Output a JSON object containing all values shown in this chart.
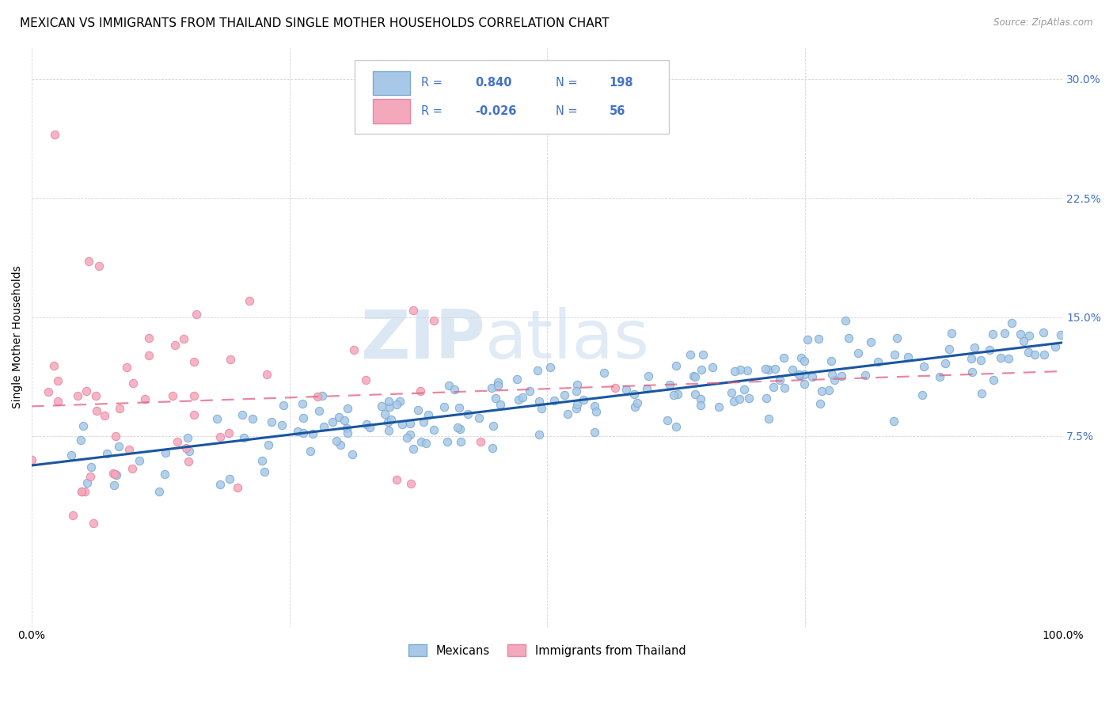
{
  "title": "MEXICAN VS IMMIGRANTS FROM THAILAND SINGLE MOTHER HOUSEHOLDS CORRELATION CHART",
  "source": "Source: ZipAtlas.com",
  "ylabel": "Single Mother Households",
  "watermark_zip": "ZIP",
  "watermark_atlas": "atlas",
  "blue_R": 0.84,
  "blue_N": 198,
  "pink_R": -0.026,
  "pink_N": 56,
  "blue_color": "#A8C8E8",
  "pink_color": "#F4A8BC",
  "blue_edge_color": "#7AAAD0",
  "pink_edge_color": "#E888A0",
  "blue_line_color": "#1A56A0",
  "pink_line_color": "#E06080",
  "xlim": [
    0,
    1.0
  ],
  "ylim": [
    -0.045,
    0.32
  ],
  "yticks": [
    0.075,
    0.15,
    0.225,
    0.3
  ],
  "ytick_labels": [
    "7.5%",
    "15.0%",
    "22.5%",
    "30.0%"
  ],
  "legend_labels": [
    "Mexicans",
    "Immigrants from Thailand"
  ],
  "title_fontsize": 11,
  "tick_fontsize": 10,
  "background_color": "#FFFFFF",
  "grid_color": "#CCCCCC",
  "tick_color": "#4472C4"
}
